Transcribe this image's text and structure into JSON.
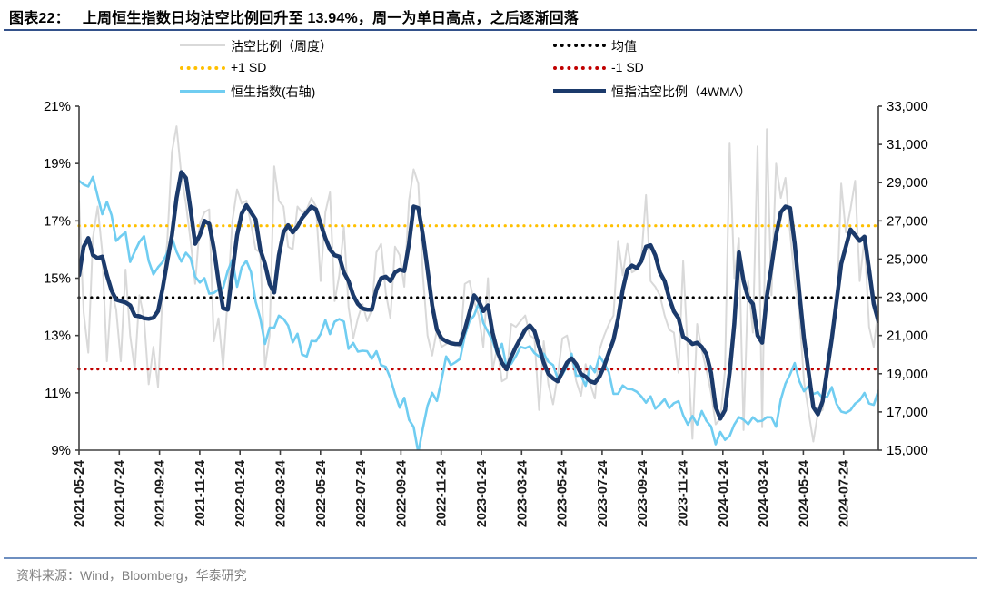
{
  "header": {
    "tag": "图表22：",
    "title": "上周恒生指数日均沽空比例回升至 13.94%，周一为单日高点，之后逐渐回落"
  },
  "legend": {
    "items": [
      {
        "label": "沽空比例（周度）",
        "style": "solid",
        "color": "#D9D9D9",
        "thickness": 3
      },
      {
        "label": "均值",
        "style": "dotted",
        "color": "#000000",
        "thickness": 4
      },
      {
        "label": "+1 SD",
        "style": "dotted",
        "color": "#FFC000",
        "thickness": 4
      },
      {
        "label": "-1 SD",
        "style": "dotted",
        "color": "#C00000",
        "thickness": 4
      },
      {
        "label": "恒生指数(右轴)",
        "style": "solid",
        "color": "#70CDF1",
        "thickness": 3
      },
      {
        "label": "恒指沽空比例（4WMA）",
        "style": "solid",
        "color": "#1B3A6B",
        "thickness": 5
      }
    ]
  },
  "chart_data": {
    "type": "line",
    "title": "上周恒生指数日均沽空比例回升至 13.94%，周一为单日高点，之后逐渐回落",
    "x_tick_labels": [
      "2021-05-24",
      "2021-07-24",
      "2021-09-24",
      "2021-11-24",
      "2022-01-24",
      "2022-03-24",
      "2022-05-24",
      "2022-07-24",
      "2022-09-24",
      "2022-11-24",
      "2023-01-24",
      "2023-03-24",
      "2023-05-24",
      "2023-07-24",
      "2023-09-24",
      "2023-11-24",
      "2024-01-24",
      "2024-03-24",
      "2024-05-24",
      "2024-07-24"
    ],
    "y_left": {
      "min": 9,
      "max": 21,
      "tick_labels": [
        "21%",
        "19%",
        "17%",
        "15%",
        "13%",
        "11%",
        "9%"
      ]
    },
    "y_right": {
      "min": 15000,
      "max": 33000,
      "tick_labels": [
        "33,000",
        "31,000",
        "29,000",
        "27,000",
        "25,000",
        "23,000",
        "21,000",
        "19,000",
        "17,000",
        "15,000"
      ]
    },
    "grid": "off",
    "legend_position": "top",
    "ref_lines": [
      {
        "name": "均值",
        "value": 14.32,
        "color": "#000000",
        "axis": "left"
      },
      {
        "name": "+1 SD",
        "value": 16.83,
        "color": "#FFC000",
        "axis": "left"
      },
      {
        "name": "-1 SD",
        "value": 11.83,
        "color": "#C00000",
        "axis": "left"
      }
    ],
    "series": [
      {
        "name": "沽空比例（周度）",
        "axis": "left",
        "color": "#D9D9D9",
        "width": 2,
        "values": [
          17.7,
          13.8,
          12.4,
          16.4,
          17.5,
          15.9,
          12.1,
          14.6,
          13.9,
          12.1,
          15.3,
          13.0,
          11.8,
          14.4,
          13.6,
          11.3,
          12.6,
          11.2,
          14.5,
          16.3,
          19.4,
          20.3,
          18.6,
          17.6,
          16.3,
          14.8,
          16.9,
          17.3,
          17.4,
          12.8,
          13.6,
          11.9,
          14.3,
          17.0,
          18.1,
          17.6,
          17.7,
          16.9,
          16.0,
          15.9,
          11.9,
          13.0,
          18.9,
          17.7,
          17.5,
          16.1,
          16.0,
          17.5,
          17.3,
          17.4,
          17.8,
          17.5,
          14.9,
          17.3,
          18.0,
          14.2,
          15.1,
          16.8,
          14.0,
          12.9,
          13.6,
          14.1,
          13.5,
          13.9,
          15.9,
          16.2,
          14.5,
          13.6,
          16.1,
          15.8,
          14.7,
          17.7,
          18.8,
          18.3,
          15.1,
          13.0,
          12.3,
          13.2,
          12.6,
          12.7,
          12.8,
          12.7,
          12.6,
          14.8,
          14.9,
          14.2,
          13.7,
          12.6,
          15.0,
          11.8,
          12.6,
          11.4,
          11.5,
          13.4,
          13.3,
          13.5,
          13.7,
          13.0,
          12.9,
          10.4,
          12.8,
          11.3,
          10.6,
          11.6,
          12.9,
          13.0,
          12.2,
          11.4,
          10.9,
          12.0,
          11.3,
          10.8,
          12.5,
          13.0,
          13.4,
          13.7,
          16.3,
          15.1,
          16.2,
          15.2,
          15.3,
          15.7,
          17.9,
          14.9,
          14.7,
          14.4,
          13.7,
          13.2,
          13.1,
          11.7,
          15.6,
          12.4,
          9.4,
          13.4,
          12.5,
          11.8,
          11.0,
          9.9,
          10.1,
          11.8,
          19.7,
          15.0,
          16.4,
          9.7,
          14.9,
          13.1,
          19.6,
          9.8,
          20.2,
          14.4,
          19.0,
          17.8,
          18.5,
          16.6,
          14.9,
          13.8,
          11.4,
          10.3,
          9.3,
          10.3,
          10.4,
          11.7,
          13.3,
          13.8,
          18.3,
          16.6,
          17.4,
          18.4,
          14.9,
          16.4,
          13.3,
          12.6,
          13.94
        ]
      },
      {
        "name": "恒生指数(右轴)",
        "axis": "right",
        "color": "#70CDF1",
        "width": 2.6,
        "values": [
          29100,
          28900,
          28800,
          29300,
          28300,
          27350,
          28000,
          27300,
          25950,
          26200,
          26400,
          24850,
          25400,
          25900,
          26200,
          24900,
          24200,
          24575,
          24850,
          25330,
          26130,
          25380,
          24870,
          25330,
          25050,
          24080,
          23770,
          24000,
          23190,
          23225,
          23400,
          23490,
          24380,
          24965,
          23550,
          24575,
          24905,
          24325,
          22765,
          21905,
          20555,
          21410,
          21405,
          22040,
          21870,
          21520,
          20640,
          21090,
          20000,
          19900,
          20715,
          20700,
          21080,
          21805,
          21075,
          21720,
          21860,
          21725,
          20300,
          20610,
          20155,
          20200,
          20175,
          19775,
          20170,
          19450,
          19360,
          18760,
          17935,
          17225,
          17740,
          16590,
          16210,
          14865,
          16160,
          17325,
          17995,
          17575,
          18675,
          19900,
          19450,
          19595,
          19780,
          20990,
          21740,
          22045,
          22690,
          21660,
          21190,
          20720,
          20010,
          20565,
          19320,
          19520,
          19915,
          20400,
          20330,
          20440,
          20075,
          19895,
          20050,
          19625,
          19450,
          18745,
          18950,
          19390,
          20040,
          18890,
          18915,
          18365,
          19415,
          19075,
          19915,
          19540,
          19075,
          17950,
          17955,
          18380,
          18200,
          18180,
          18055,
          17810,
          17485,
          17815,
          17170,
          17400,
          17665,
          17200,
          17455,
          17560,
          16830,
          16335,
          16790,
          16340,
          17045,
          16535,
          16245,
          15310,
          15950,
          15535,
          15745,
          16340,
          16725,
          16590,
          16355,
          16720,
          16500,
          16540,
          16725,
          16720,
          16225,
          17650,
          18475,
          18965,
          19555,
          18610,
          18080,
          18365,
          17935,
          18030,
          17720,
          17800,
          18295,
          17415,
          17020,
          16945,
          17090,
          17430,
          17610,
          17990,
          17440,
          17370,
          18100
        ]
      },
      {
        "name": "恒指沽空比例（4WMA）",
        "axis": "left",
        "color": "#1B3A6B",
        "width": 4.5,
        "values": [
          15.1,
          16.1,
          16.4,
          15.8,
          15.7,
          15.75,
          15.1,
          14.57,
          14.25,
          14.2,
          14.15,
          14.05,
          13.7,
          13.67,
          13.6,
          13.58,
          13.62,
          13.85,
          14.65,
          15.6,
          16.5,
          17.8,
          18.7,
          18.5,
          17.4,
          16.2,
          16.5,
          17.0,
          16.9,
          16.05,
          14.9,
          13.95,
          13.9,
          15.2,
          16.5,
          17.25,
          17.55,
          17.3,
          17.05,
          16.0,
          15.5,
          14.8,
          14.5,
          15.8,
          16.6,
          16.85,
          16.6,
          16.8,
          17.1,
          17.3,
          17.5,
          17.4,
          16.9,
          16.4,
          16.0,
          15.8,
          15.75,
          15.2,
          14.9,
          14.4,
          14.1,
          13.94,
          13.9,
          13.9,
          14.6,
          15.0,
          15.05,
          14.9,
          15.2,
          15.3,
          15.25,
          16.2,
          17.5,
          17.45,
          16.5,
          15.3,
          14.05,
          13.2,
          12.9,
          12.8,
          12.73,
          12.7,
          12.7,
          13.2,
          13.8,
          14.4,
          14.2,
          13.85,
          14.05,
          13.1,
          12.45,
          12.05,
          11.82,
          12.25,
          12.6,
          12.9,
          13.2,
          13.35,
          13.15,
          12.6,
          12.05,
          11.66,
          11.5,
          11.4,
          11.73,
          12.05,
          12.2,
          12.0,
          11.66,
          11.56,
          11.4,
          11.35,
          11.56,
          11.93,
          12.4,
          12.85,
          13.6,
          14.6,
          15.3,
          15.44,
          15.35,
          15.6,
          16.1,
          16.15,
          15.8,
          15.2,
          14.9,
          14.3,
          13.84,
          13.6,
          12.95,
          12.85,
          12.7,
          12.75,
          12.6,
          12.35,
          11.7,
          10.5,
          10.1,
          10.4,
          11.7,
          13.4,
          15.9,
          14.9,
          14.3,
          14.1,
          13.0,
          12.75,
          14.35,
          15.4,
          16.5,
          17.3,
          17.5,
          17.45,
          16.2,
          14.5,
          12.9,
          11.7,
          10.5,
          10.25,
          10.7,
          11.8,
          12.9,
          14.2,
          15.5,
          16.1,
          16.7,
          16.5,
          16.3,
          16.45,
          15.3,
          14.1,
          13.5
        ]
      }
    ]
  },
  "footer": {
    "source": "资料来源：Wind，Bloomberg，华泰研究"
  }
}
